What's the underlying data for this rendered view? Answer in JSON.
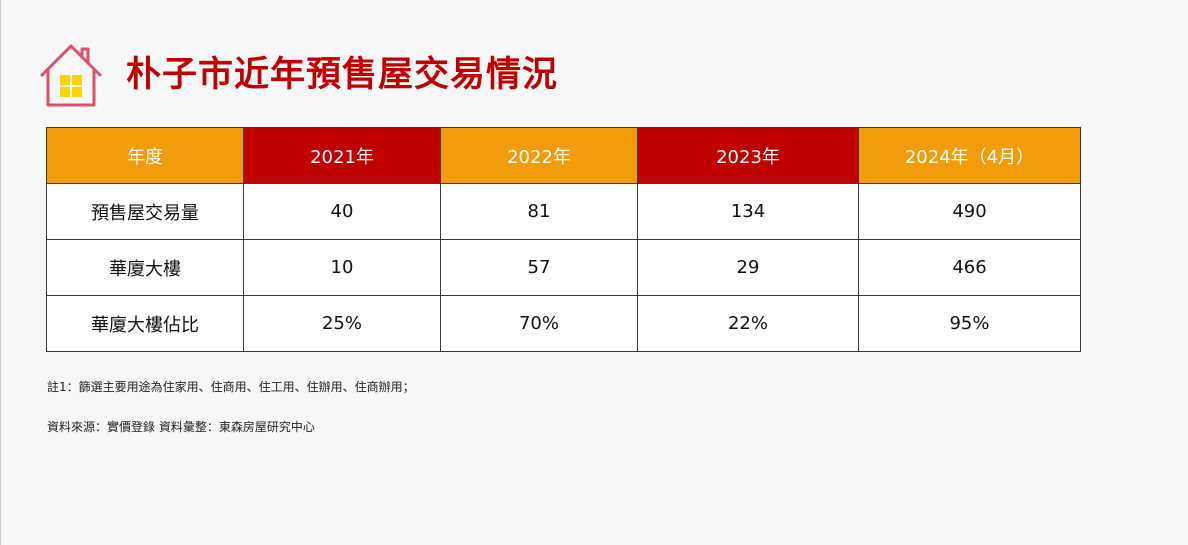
{
  "title": "朴子市近年預售屋交易情況",
  "colors": {
    "title": "#c00000",
    "header_orange": "#f39c0b",
    "header_red": "#c00000",
    "icon_house": "#d9506a",
    "icon_window": "#ffd200"
  },
  "icons": {
    "header": "house-icon"
  },
  "table": {
    "headers": [
      "年度",
      "2021年",
      "2022年",
      "2023年",
      "2024年（4月）"
    ],
    "rows": [
      {
        "label": "預售屋交易量",
        "values": [
          "40",
          "81",
          "134",
          "490"
        ]
      },
      {
        "label": "華廈大樓",
        "values": [
          "10",
          "57",
          "29",
          "466"
        ]
      },
      {
        "label": "華廈大樓佔比",
        "values": [
          "25%",
          "70%",
          "22%",
          "95%"
        ]
      }
    ]
  },
  "notes": {
    "note1": "註1：篩選主要用途為住家用、住商用、住工用、住辦用、住商辦用；",
    "source": "資料來源：實價登錄 資料彙整：東森房屋研究中心"
  }
}
